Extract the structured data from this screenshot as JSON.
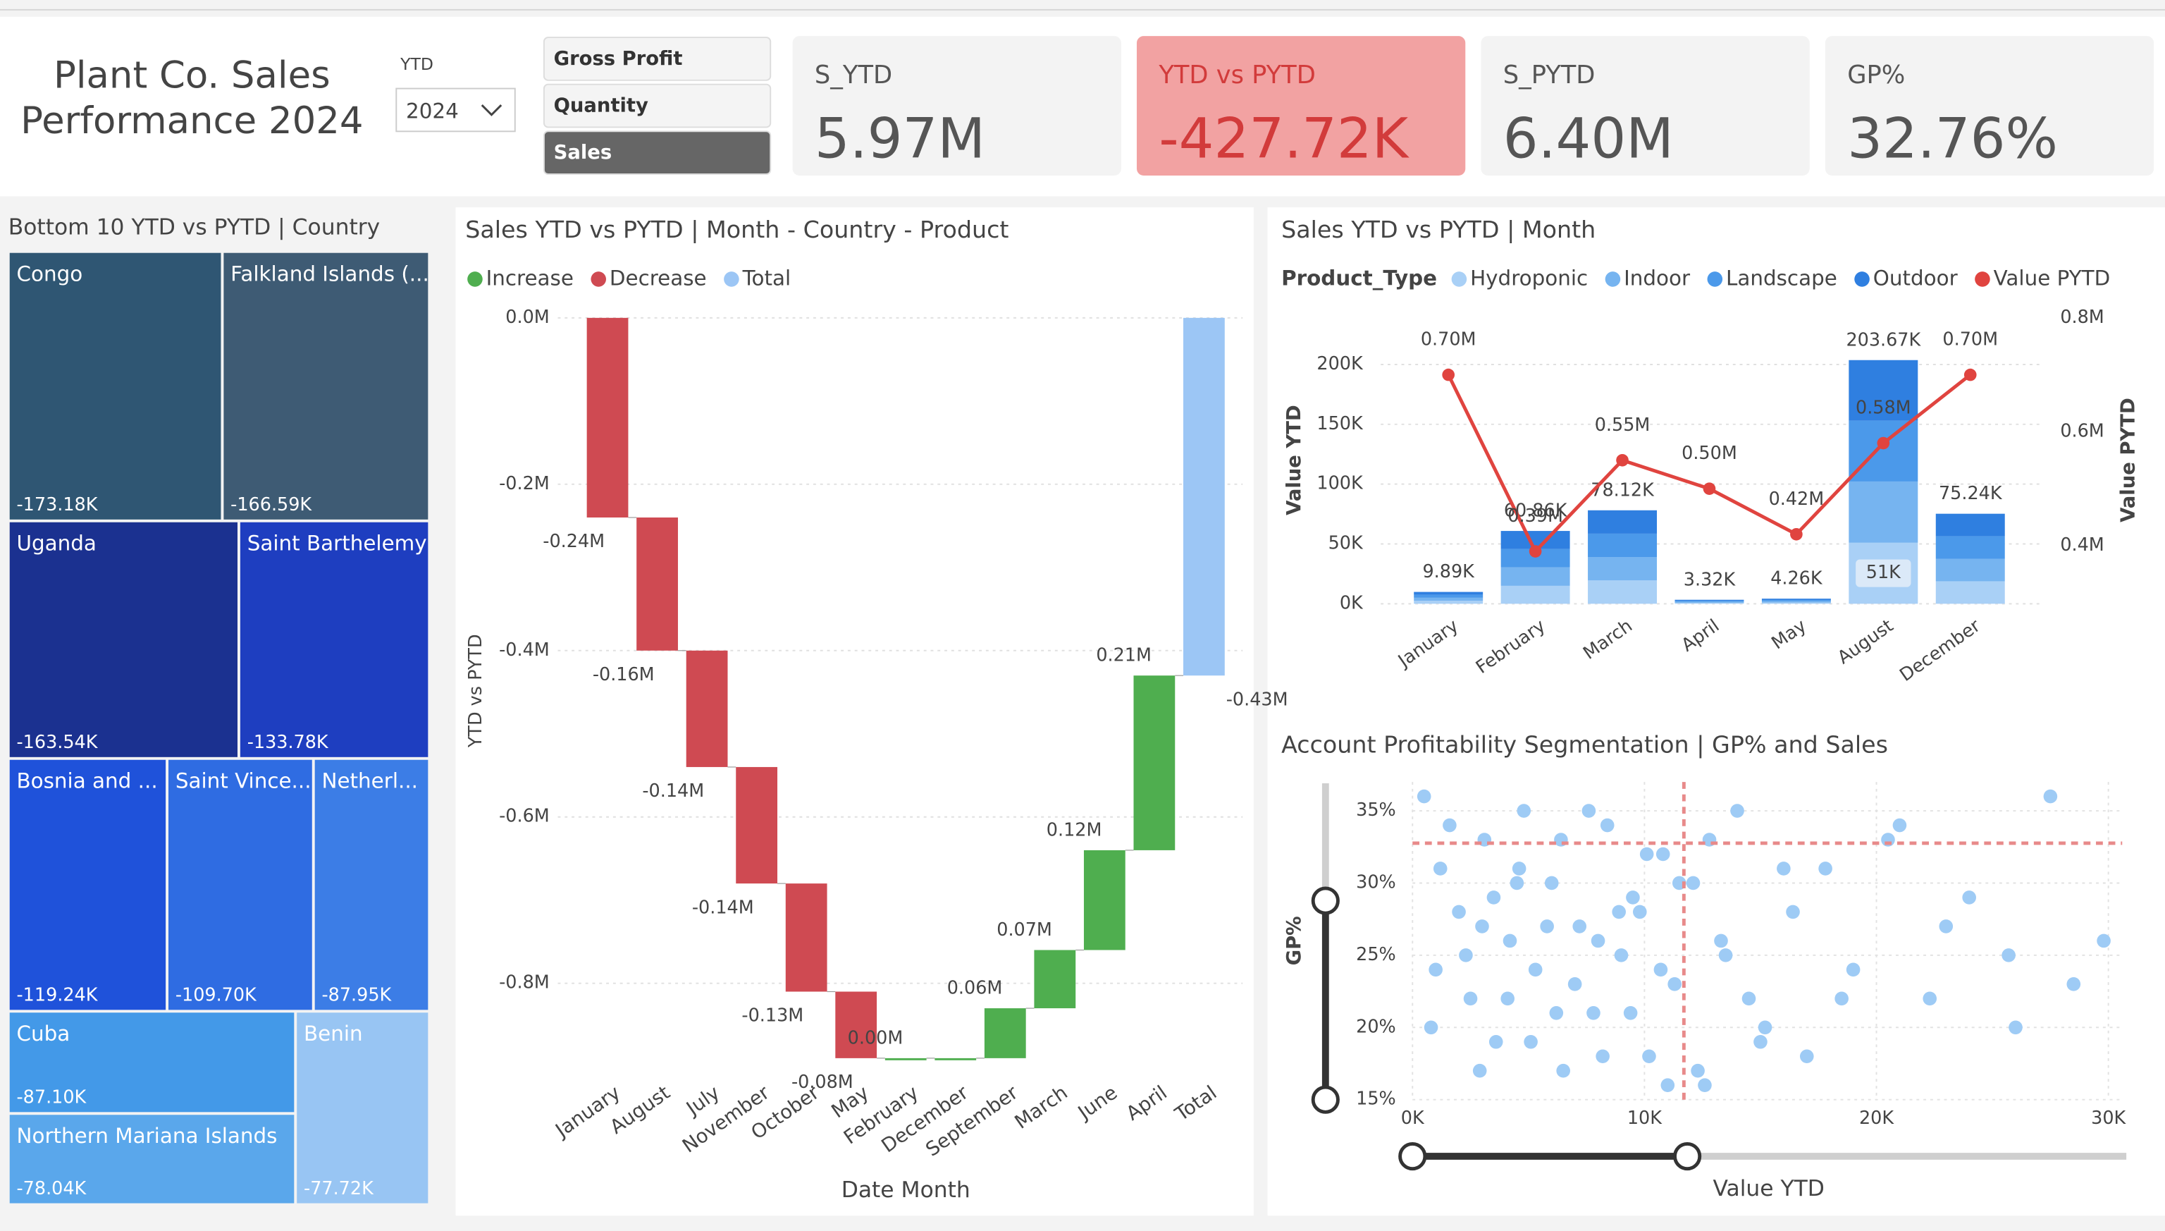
{
  "header": {
    "title_lines": [
      "Plant Co. Sales",
      "Performance 2024"
    ]
  },
  "slicer": {
    "label": "YTD",
    "value": "2024"
  },
  "buttons": {
    "items": [
      "Gross Profit",
      "Quantity",
      "Sales"
    ],
    "selected": 2
  },
  "cards": [
    {
      "label": "S_YTD",
      "value": "5.97M",
      "background": "#f3f3f3",
      "color": "#555555"
    },
    {
      "label": "YTD vs PYTD",
      "value": "-427.72K",
      "background": "#f2a2a2",
      "color": "#d23b3b"
    },
    {
      "label": "S_PYTD",
      "value": "6.40M",
      "background": "#f3f3f3",
      "color": "#555555"
    },
    {
      "label": "GP%",
      "value": "32.76%",
      "background": "#f3f3f3",
      "color": "#555555"
    }
  ],
  "chart_data": [
    {
      "type": "treemap",
      "title": "Bottom 10 YTD vs PYTD | Country",
      "categories": [
        "Congo",
        "Falkland Islands (...",
        "Uganda",
        "Saint Barthelemy",
        "Bosnia and ...",
        "Saint Vince...",
        "Netherl...",
        "Cuba",
        "Northern Mariana Islands",
        "Benin"
      ],
      "values": [
        -173180,
        -166590,
        -163540,
        -133780,
        -119240,
        -109700,
        -87950,
        -87100,
        -78040,
        -77720
      ],
      "value_labels": [
        "-173.18K",
        "-166.59K",
        "-163.54K",
        "-133.78K",
        "-119.24K",
        "-109.70K",
        "-87.95K",
        "-87.10K",
        "-78.04K",
        "-77.72K"
      ],
      "colors": [
        "#2f5673",
        "#3e5b74",
        "#1b3190",
        "#1e3ec0",
        "#1f52da",
        "#2f6ce2",
        "#3c7de6",
        "#4399e8",
        "#5aa7eb",
        "#98c5f3"
      ]
    },
    {
      "type": "waterfall",
      "title": "Sales YTD vs PYTD | Month - Country - Product",
      "legend": [
        {
          "name": "Increase",
          "color": "#4fae4f"
        },
        {
          "name": "Decrease",
          "color": "#cf4a52"
        },
        {
          "name": "Total",
          "color": "#9cc6f5"
        }
      ],
      "categories": [
        "January",
        "August",
        "July",
        "November",
        "October",
        "May",
        "February",
        "December",
        "September",
        "March",
        "June",
        "April",
        "Total"
      ],
      "values": [
        -0.24,
        -0.16,
        -0.14,
        -0.14,
        -0.13,
        -0.08,
        0.0,
        0.0,
        0.06,
        0.07,
        0.12,
        0.21,
        -0.43
      ],
      "value_labels": [
        "-0.24M",
        "-0.16M",
        "-0.14M",
        "-0.14M",
        "-0.13M",
        "-0.08M",
        "0.00M",
        null,
        "0.06M",
        "0.07M",
        "0.12M",
        "0.21M",
        "-0.43M"
      ],
      "last_is_total": true,
      "ylim": [
        -0.9,
        0.01
      ],
      "yticks": [
        {
          "value": 0,
          "label": "0.0M"
        },
        {
          "value": -0.2,
          "label": "-0.2M"
        },
        {
          "value": -0.4,
          "label": "-0.4M"
        },
        {
          "value": -0.6,
          "label": "-0.6M"
        },
        {
          "value": -0.8,
          "label": "-0.8M"
        }
      ],
      "grid": true,
      "x_label": "Date Month",
      "y_label": "YTD vs PYTD"
    },
    {
      "type": "combo",
      "title": "Sales YTD vs PYTD | Month",
      "legend_title": "Product_Type",
      "categories": [
        "January",
        "February",
        "March",
        "April",
        "May",
        "August",
        "December"
      ],
      "series": [
        {
          "name": "Hydroponic",
          "color": "#a9d0f6",
          "values": [
            2500,
            15000,
            19500,
            830,
            1065,
            51000,
            18800
          ],
          "value_labels": [
            null,
            null,
            null,
            null,
            null,
            "51K",
            null
          ]
        },
        {
          "name": "Indoor",
          "color": "#76b4f0",
          "values": [
            2500,
            15500,
            19600,
            830,
            1065,
            51200,
            18800
          ]
        },
        {
          "name": "Landscape",
          "color": "#4b99ea",
          "values": [
            2500,
            15200,
            19500,
            830,
            1065,
            50800,
            18800
          ]
        },
        {
          "name": "Outdoor",
          "color": "#2f7fe0",
          "values": [
            2390,
            15160,
            19520,
            830,
            1065,
            50670,
            18840
          ]
        },
        {
          "name": "Value PYTD",
          "color": "#e0443f",
          "axis": "y2",
          "values": [
            700000,
            390000,
            550000,
            500000,
            420000,
            580000,
            700000
          ],
          "value_labels": [
            "0.70M",
            "0.39M",
            "0.55M",
            "0.50M",
            "0.42M",
            "0.58M",
            "0.70M"
          ]
        }
      ],
      "total_values": [
        9890,
        60860,
        78120,
        3320,
        4260,
        203670,
        75240
      ],
      "total_labels": [
        "9.89K",
        "60.86K",
        "78.12K",
        "3.32K",
        "4.26K",
        "203.67K",
        "75.24K"
      ],
      "ylim": [
        0,
        239000
      ],
      "yticks": [
        {
          "value": 0,
          "label": "0K"
        },
        {
          "value": 50000,
          "label": "50K"
        },
        {
          "value": 100000,
          "label": "100K"
        },
        {
          "value": 150000,
          "label": "150K"
        },
        {
          "value": 200000,
          "label": "200K"
        }
      ],
      "y2lim": [
        298000,
        800000
      ],
      "y2ticks": [
        {
          "value": 400000,
          "label": "0.4M"
        },
        {
          "value": 600000,
          "label": "0.6M"
        },
        {
          "value": 800000,
          "label": "0.8M"
        }
      ],
      "grid": true,
      "y_label": "Value YTD",
      "y2_label": "Value PYTD"
    },
    {
      "type": "scatter",
      "title": "Account Profitability Segmentation | GP% and Sales",
      "color": "#9ecbf5",
      "x": [
        500,
        1200,
        2000,
        2500,
        3100,
        3600,
        4200,
        4800,
        5300,
        6000,
        6500,
        7200,
        7800,
        8400,
        9000,
        9500,
        10200,
        10800,
        11300,
        12100,
        12600,
        13300,
        14000,
        15200,
        16400,
        17800,
        19000,
        20500,
        22300,
        24000,
        25700,
        27500,
        29800,
        800,
        1600,
        2300,
        2900,
        3500,
        4100,
        4600,
        5100,
        5800,
        6400,
        7000,
        7600,
        8200,
        8900,
        9400,
        10100,
        10700,
        11500,
        12300,
        13500,
        15000,
        16000,
        18500,
        21000,
        23000,
        26000,
        28500,
        1000,
        3000,
        4500,
        6200,
        8000,
        9800,
        11000,
        12800,
        14500,
        17000
      ],
      "y": [
        36,
        31,
        28,
        22,
        33,
        19,
        26,
        35,
        24,
        30,
        17,
        27,
        21,
        34,
        25,
        29,
        18,
        32,
        23,
        30,
        16,
        26,
        35,
        20,
        28,
        31,
        24,
        33,
        22,
        29,
        25,
        36,
        26,
        20,
        34,
        25,
        17,
        29,
        22,
        31,
        19,
        27,
        33,
        23,
        35,
        18,
        28,
        21,
        32,
        24,
        30,
        17,
        25,
        19,
        31,
        22,
        34,
        27,
        20,
        23,
        24,
        27,
        30,
        21,
        26,
        28,
        16,
        33,
        22,
        18
      ],
      "xlim": [
        0,
        30000
      ],
      "xticks": [
        {
          "value": 0,
          "label": "0K"
        },
        {
          "value": 10000,
          "label": "10K"
        },
        {
          "value": 20000,
          "label": "20K"
        },
        {
          "value": 30000,
          "label": "30K"
        }
      ],
      "ylim": [
        15,
        37
      ],
      "yticks": [
        {
          "value": 15,
          "label": "15%"
        },
        {
          "value": 20,
          "label": "20%"
        },
        {
          "value": 25,
          "label": "25%"
        },
        {
          "value": 30,
          "label": "30%"
        },
        {
          "value": 35,
          "label": "35%"
        }
      ],
      "ref_x": 11700,
      "ref_y": 32.76,
      "ref_color": "#e88a8a",
      "grid": true,
      "x_label": "Value YTD",
      "y_label": "GP%"
    }
  ]
}
